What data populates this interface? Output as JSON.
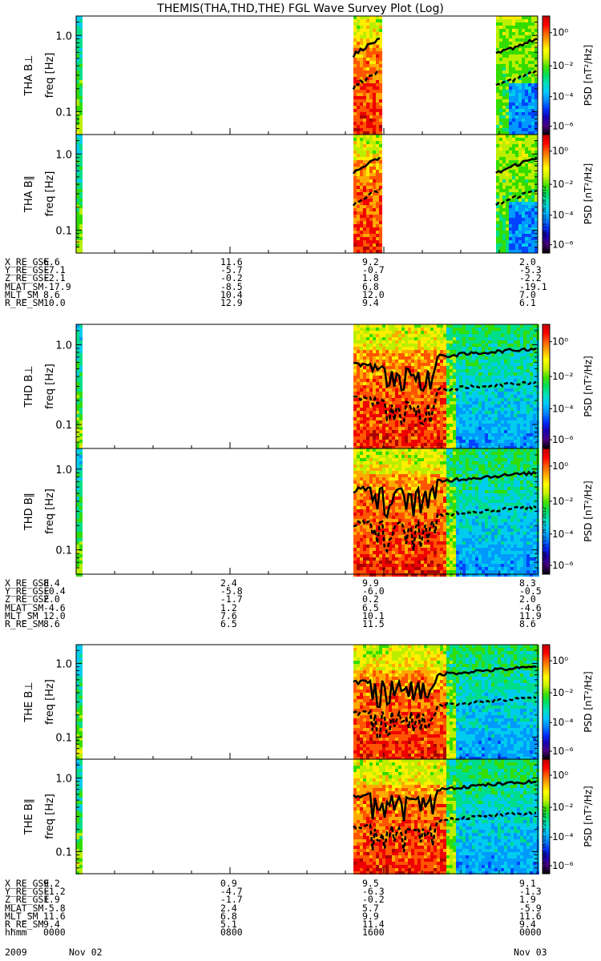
{
  "title": "THEMIS(THA,THD,THE) FGL Wave Survey Plot (Log)",
  "colors": {
    "frame": "#000000",
    "colorbar": [
      "#4b0082",
      "#0000cc",
      "#0044ff",
      "#0099ff",
      "#00ccee",
      "#00dd88",
      "#33dd00",
      "#bbee00",
      "#ffee00",
      "#ffaa00",
      "#ff5500",
      "#ee0000",
      "#aa0000"
    ],
    "background": "#ffffff"
  },
  "colorbar": {
    "label": "PSD [nT²/Hz]",
    "ticks": [
      "10⁰",
      "10⁻²",
      "10⁻⁴",
      "10⁻⁶"
    ]
  },
  "timestamp": "Sun Sep 16 03:36:28 2012",
  "panels": [
    {
      "probe": "THA",
      "label": "THA B⊥",
      "ylabel": "freq [Hz]",
      "yticks": [
        "1.0",
        "0.1"
      ]
    },
    {
      "probe": "THA",
      "label": "THA B∥",
      "ylabel": "freq [Hz]",
      "yticks": [
        "1.0",
        "0.1"
      ]
    },
    {
      "probe": "THD",
      "label": "THD B⊥",
      "ylabel": "freq [Hz]",
      "yticks": [
        "1.0",
        "0.1"
      ]
    },
    {
      "probe": "THD",
      "label": "THD B∥",
      "ylabel": "freq [Hz]",
      "yticks": [
        "1.0",
        "0.1"
      ]
    },
    {
      "probe": "THE",
      "label": "THE B⊥",
      "ylabel": "freq [Hz]",
      "yticks": [
        "1.0",
        "0.1"
      ]
    },
    {
      "probe": "THE",
      "label": "THE B∥",
      "ylabel": "freq [Hz]",
      "yticks": [
        "1.0",
        "0.1"
      ]
    }
  ],
  "ephemeris": [
    {
      "probe": "THA",
      "rows": [
        {
          "label": "X_RE_GSE",
          "values": [
            "6.6",
            "11.6",
            "9.2",
            "2.0"
          ]
        },
        {
          "label": "Y_RE_GSE",
          "values": [
            "-7.1",
            "-5.7",
            "-0.7",
            "-5.3"
          ]
        },
        {
          "label": "Z_RE_GSE",
          "values": [
            "-2.1",
            "-0.2",
            "1.8",
            "-2.2"
          ]
        },
        {
          "label": "MLAT_SM",
          "values": [
            "-17.9",
            "-8.5",
            "6.8",
            "-19.1"
          ]
        },
        {
          "label": "MLT_SM",
          "values": [
            "8.6",
            "10.4",
            "12.0",
            "7.0"
          ]
        },
        {
          "label": "R_RE_SM",
          "values": [
            "10.0",
            "12.9",
            "9.4",
            "6.1"
          ]
        }
      ]
    },
    {
      "probe": "THD",
      "rows": [
        {
          "label": "X_RE_GSE",
          "values": [
            "8.4",
            "2.4",
            "9.9",
            "8.3"
          ]
        },
        {
          "label": "Y_RE_GSE",
          "values": [
            "-0.4",
            "-5.8",
            "-6.0",
            "-0.5"
          ]
        },
        {
          "label": "Z_RE_GSE",
          "values": [
            "2.0",
            "-1.7",
            "0.2",
            "2.0"
          ]
        },
        {
          "label": "MLAT_SM",
          "values": [
            "-4.6",
            "1.2",
            "6.5",
            "-4.6"
          ]
        },
        {
          "label": "MLT_SM",
          "values": [
            "12.0",
            "7.6",
            "10.1",
            "11.9"
          ]
        },
        {
          "label": "R_RE_SM",
          "values": [
            "8.6",
            "6.5",
            "11.5",
            "8.6"
          ]
        }
      ]
    },
    {
      "probe": "THE",
      "rows": [
        {
          "label": "X_RE_GSE",
          "values": [
            "9.2",
            "0.9",
            "9.5",
            "9.1"
          ]
        },
        {
          "label": "Y_RE_GSE",
          "values": [
            "-1.2",
            "-4.7",
            "-6.3",
            "-1.3"
          ]
        },
        {
          "label": "Z_RE_GSE",
          "values": [
            "1.9",
            "-1.7",
            "-0.2",
            "1.9"
          ]
        },
        {
          "label": "MLAT_SM",
          "values": [
            "-5.8",
            "2.4",
            "5.7",
            "-5.9"
          ]
        },
        {
          "label": "MLT_SM",
          "values": [
            "11.6",
            "6.8",
            "9.9",
            "11.6"
          ]
        },
        {
          "label": "R_RE_SM",
          "values": [
            "9.4",
            "5.1",
            "11.4",
            "9.4"
          ]
        },
        {
          "label": "hhmm",
          "values": [
            "0000",
            "0800",
            "1600",
            "0000"
          ]
        }
      ]
    }
  ],
  "date_labels": {
    "year": "2009",
    "start": "Nov 02",
    "end": "Nov 03"
  },
  "chart_data": {
    "type": "heatmap",
    "title": "THEMIS(THA,THD,THE) FGL Wave Survey Plot (Log)",
    "x": {
      "label": "hhmm",
      "ticks": [
        "0000",
        "0800",
        "1600",
        "0000"
      ],
      "range": [
        "2009-11-02 00:00",
        "2009-11-03 00:00"
      ]
    },
    "y": {
      "label": "freq [Hz]",
      "scale": "log",
      "ticks": [
        1.0,
        0.1
      ],
      "range": [
        0.05,
        1.8
      ]
    },
    "z": {
      "label": "PSD [nT²/Hz]",
      "scale": "log",
      "ticks": [
        1,
        0.01,
        0.0001,
        1e-06
      ]
    },
    "data_intervals": {
      "THA": [
        [
          "00:00",
          "00:15"
        ],
        [
          "14:25",
          "15:50"
        ],
        [
          "21:50",
          "24:00"
        ]
      ],
      "THD": [
        [
          "00:00",
          "00:15"
        ],
        [
          "14:25",
          "24:00"
        ]
      ],
      "THE": [
        [
          "00:00",
          "00:15"
        ],
        [
          "14:25",
          "24:00"
        ]
      ]
    }
  }
}
